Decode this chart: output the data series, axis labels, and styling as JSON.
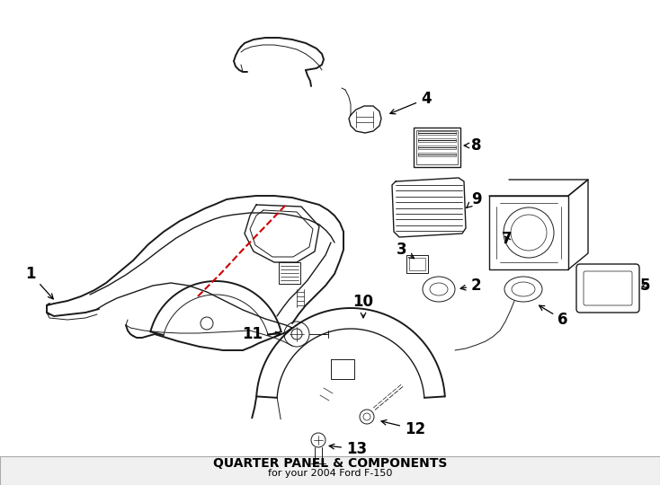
{
  "title": "QUARTER PANEL & COMPONENTS",
  "subtitle": "for your 2004 Ford F-150",
  "background_color": "#ffffff",
  "line_color": "#1a1a1a",
  "red_dashed_color": "#cc0000",
  "label_color": "#000000",
  "title_fontsize": 10,
  "subtitle_fontsize": 8,
  "label_fontsize": 12
}
